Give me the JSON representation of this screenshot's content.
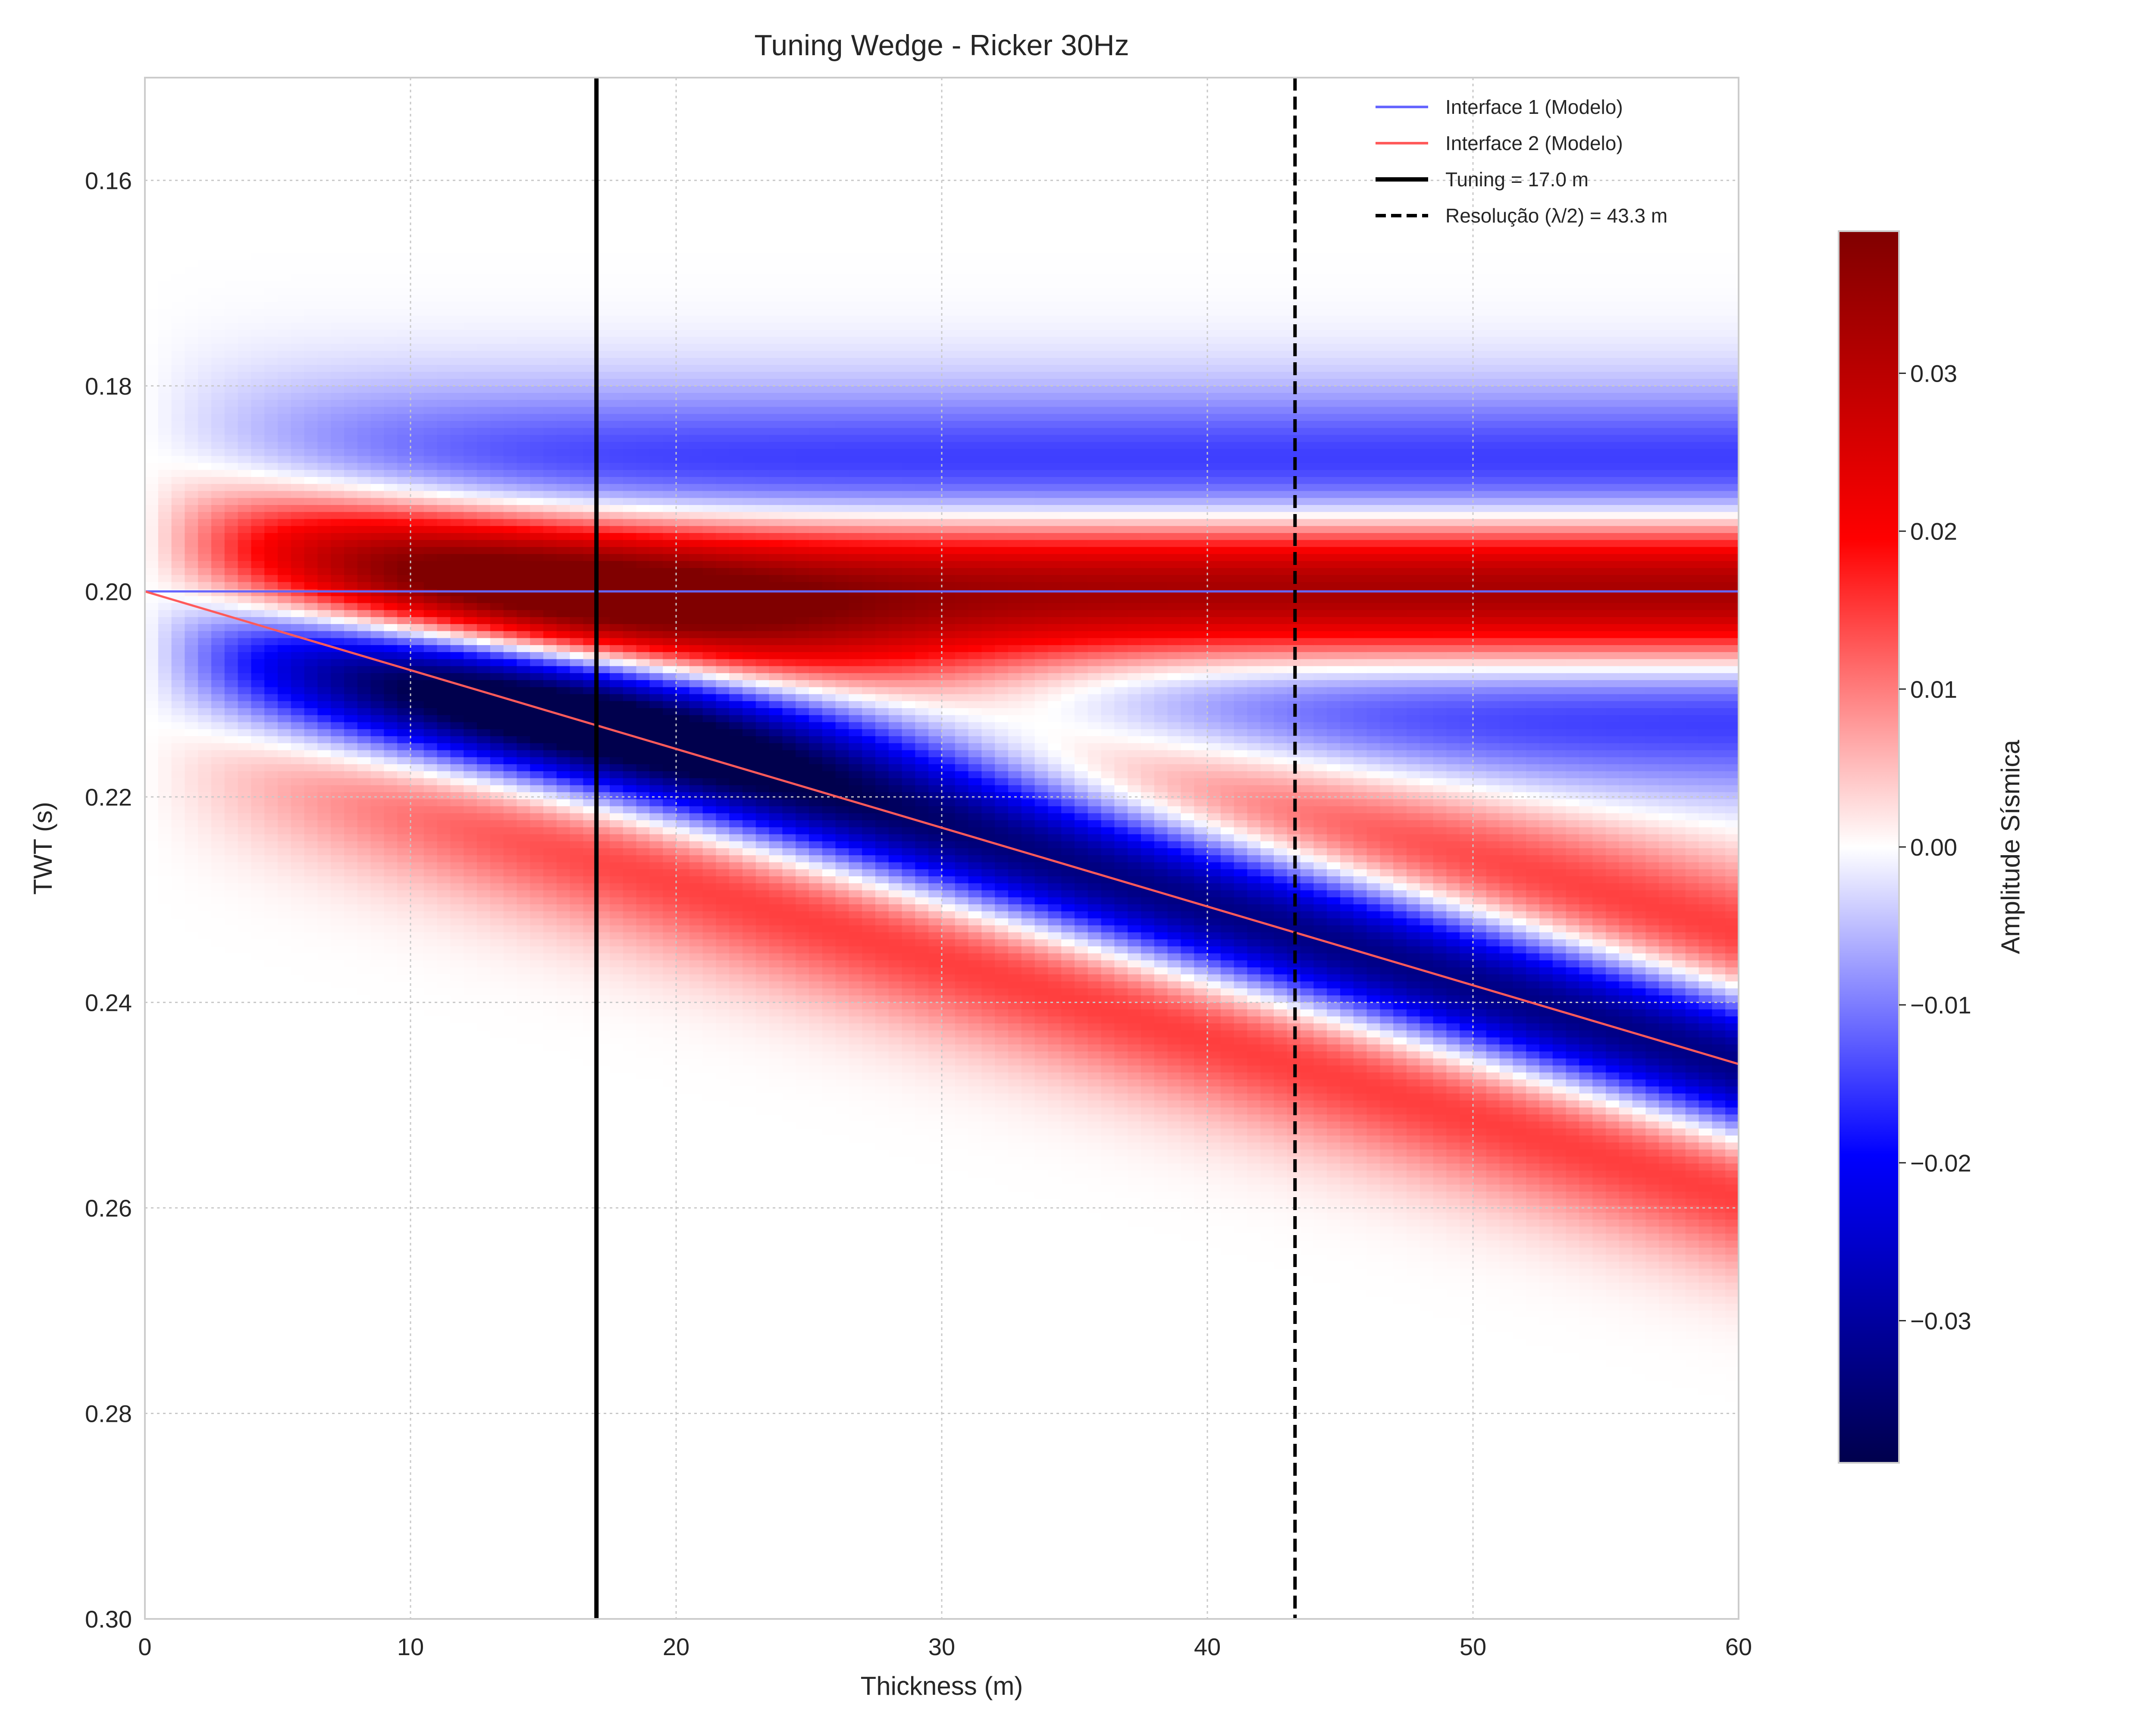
{
  "chart_data": {
    "type": "heatmap",
    "title": "Tuning Wedge - Ricker 30Hz",
    "xlabel": "Thickness (m)",
    "ylabel": "TWT (s)",
    "xlim": [
      0,
      60
    ],
    "ylim": [
      0.3,
      0.15
    ],
    "xticks": [
      0,
      10,
      20,
      30,
      40,
      50,
      60
    ],
    "xtick_labels": [
      "0",
      "10",
      "20",
      "30",
      "40",
      "50",
      "60"
    ],
    "yticks": [
      0.16,
      0.18,
      0.2,
      0.22,
      0.24,
      0.26,
      0.28,
      0.3
    ],
    "ytick_labels": [
      "0.16",
      "0.18",
      "0.20",
      "0.22",
      "0.24",
      "0.26",
      "0.28",
      "0.30"
    ],
    "grid": true,
    "colormap": "seismic",
    "colorbar": {
      "label": "Amplitude Sísmica",
      "vmin": -0.039,
      "vmax": 0.039,
      "ticks": [
        0.03,
        0.02,
        0.01,
        0.0,
        -0.01,
        -0.02,
        -0.03
      ],
      "tick_labels": [
        "0.03",
        "0.02",
        "0.01",
        "0.00",
        "−0.01",
        "−0.02",
        "−0.03"
      ]
    },
    "series": [
      {
        "name": "Interface 1 (Modelo)",
        "style": "line",
        "color": "#6666ff",
        "x": [
          0,
          60
        ],
        "y": [
          0.2,
          0.2
        ]
      },
      {
        "name": "Interface 2 (Modelo)",
        "style": "line",
        "color": "#ff5a5a",
        "x": [
          0,
          60
        ],
        "y": [
          0.2,
          0.246
        ]
      },
      {
        "name": "Tuning = 17.0 m",
        "style": "vline-solid",
        "color": "#000000",
        "x": 17.0
      },
      {
        "name": "Resolução (λ/2) = 43.3 m",
        "style": "vline-dashed",
        "color": "#000000",
        "x": 43.3
      }
    ],
    "legend_position": "top-right",
    "amplitude_field": {
      "description_units": "TWT in s, thickness in m",
      "wavelet": "Ricker",
      "frequency_hz": 30,
      "top_interface_twt": 0.2,
      "interface_slope_s_per_m": 0.000767,
      "top_reflection_amplitude": 0.033,
      "base_reflection_amplitude": -0.033
    }
  }
}
